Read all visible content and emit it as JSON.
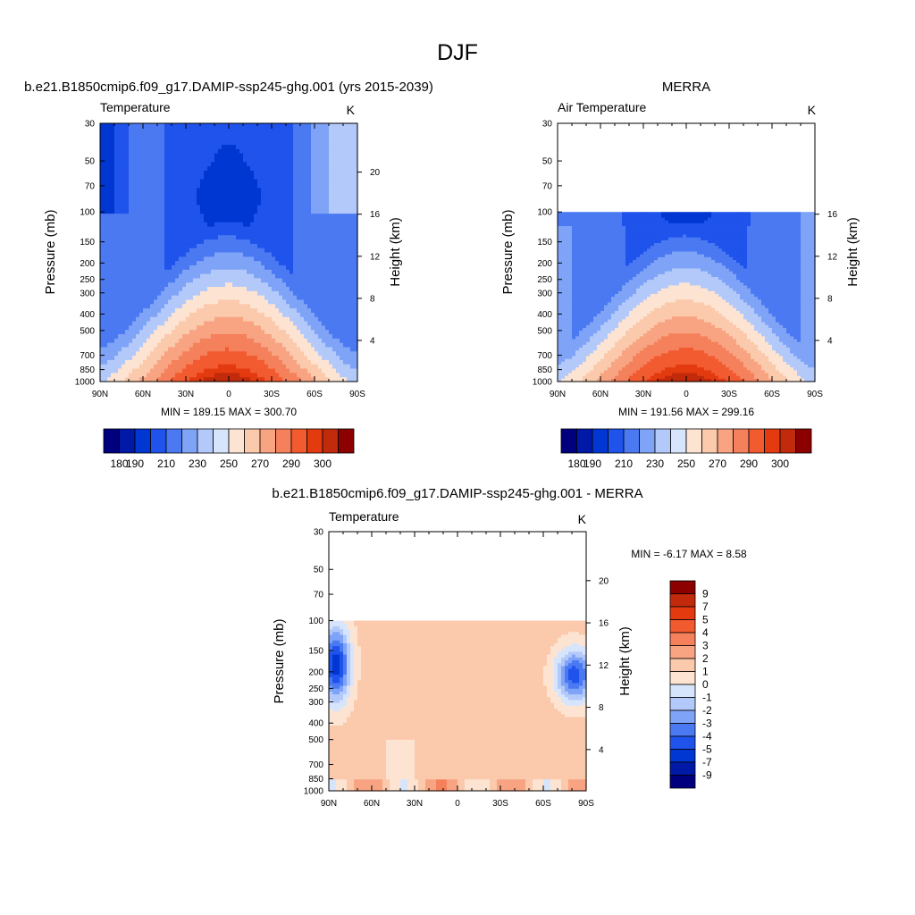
{
  "figure": {
    "title": "DJF"
  },
  "chart_data": [
    {
      "type": "heatmap",
      "title": "b.e21.B1850cmip6.f09_g17.DAMIP-ssp245-ghg.001 (yrs 2015-2039)",
      "left_string": "Temperature",
      "right_string": "K",
      "xlabel": "",
      "ylabel": "Pressure (mb)",
      "y2label": "Height (km)",
      "x_ticks": [
        "90N",
        "60N",
        "30N",
        "0",
        "30S",
        "60S",
        "90S"
      ],
      "y_ticks": [
        "30",
        "50",
        "70",
        "100",
        "150",
        "200",
        "250",
        "300",
        "400",
        "500",
        "700",
        "850",
        "1000"
      ],
      "y2_ticks": [
        "20",
        "16",
        "12",
        "8",
        "4"
      ],
      "y_scale": "log",
      "ylim": [
        1000,
        30
      ],
      "stats": "MIN = 189.15  MAX = 300.70",
      "colorbar_labels": [
        "180",
        "190",
        "210",
        "230",
        "250",
        "270",
        "290",
        "300"
      ],
      "colorbar_orientation": "horizontal",
      "min": 189.15,
      "max": 300.7
    },
    {
      "type": "heatmap",
      "title": "MERRA",
      "left_string": "Air Temperature",
      "right_string": "K",
      "xlabel": "",
      "ylabel": "Pressure (mb)",
      "y2label": "Height (km)",
      "x_ticks": [
        "90N",
        "60N",
        "30N",
        "0",
        "30S",
        "60S",
        "90S"
      ],
      "y_ticks": [
        "30",
        "50",
        "70",
        "100",
        "150",
        "200",
        "250",
        "300",
        "400",
        "500",
        "700",
        "850",
        "1000"
      ],
      "y2_ticks": [
        "16",
        "12",
        "8",
        "4"
      ],
      "y_scale": "log",
      "ylim": [
        1000,
        30
      ],
      "stats": "MIN = 191.56  MAX = 299.16",
      "colorbar_labels": [
        "180",
        "190",
        "210",
        "230",
        "250",
        "270",
        "290",
        "300"
      ],
      "colorbar_orientation": "horizontal",
      "min": 191.56,
      "max": 299.16
    },
    {
      "type": "heatmap",
      "title": "b.e21.B1850cmip6.f09_g17.DAMIP-ssp245-ghg.001 - MERRA",
      "left_string": "Temperature",
      "right_string": "K",
      "xlabel": "",
      "ylabel": "Pressure (mb)",
      "y2label": "Height (km)",
      "x_ticks": [
        "90N",
        "60N",
        "30N",
        "0",
        "30S",
        "60S",
        "90S"
      ],
      "y_ticks": [
        "30",
        "50",
        "70",
        "100",
        "150",
        "200",
        "250",
        "300",
        "400",
        "500",
        "700",
        "850",
        "1000"
      ],
      "y2_ticks": [
        "20",
        "16",
        "12",
        "8",
        "4"
      ],
      "y_scale": "log",
      "ylim": [
        1000,
        30
      ],
      "stats": "MIN =  -6.17  MAX =   8.58",
      "colorbar_labels": [
        "9",
        "7",
        "5",
        "4",
        "3",
        "2",
        "1",
        "0",
        "-1",
        "-2",
        "-3",
        "-4",
        "-5",
        "-7",
        "-9"
      ],
      "colorbar_orientation": "vertical",
      "min": -6.17,
      "max": 8.58
    }
  ],
  "palettes": {
    "abs": [
      "#00007f",
      "#0019a6",
      "#0036d1",
      "#1f53eb",
      "#4a79f2",
      "#7fa3f7",
      "#b3c9fa",
      "#d6e5fc",
      "#fde4d2",
      "#fbc9ab",
      "#f8a482",
      "#f5805c",
      "#f25a30",
      "#e33a10",
      "#c12a0a",
      "#8c0000"
    ],
    "diff": [
      "#00007f",
      "#0019a6",
      "#0036d1",
      "#1f53eb",
      "#4a79f2",
      "#7fa3f7",
      "#b3c9fa",
      "#d6e5fc",
      "#fde4d2",
      "#fbc9ab",
      "#f8a482",
      "#f5805c",
      "#f25a30",
      "#e33a10",
      "#c12a0a",
      "#8c0000"
    ]
  }
}
